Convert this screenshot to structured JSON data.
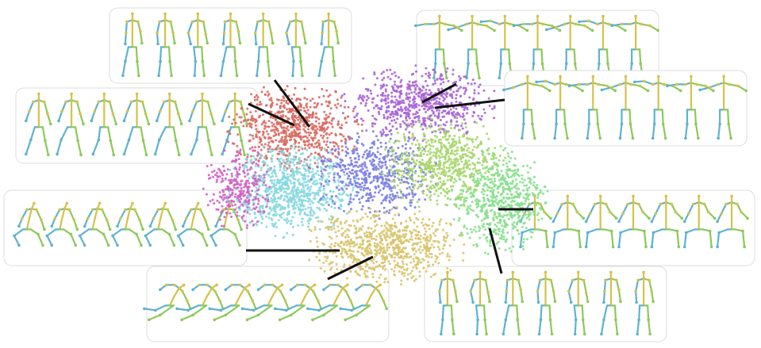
{
  "palette": {
    "red": "#d9695f",
    "purple": "#a863d6",
    "cyan": "#86d8e0",
    "blue": "#7b7fe3",
    "lime": "#a7d66b",
    "green": "#86e08c",
    "yellow": "#d8c46c",
    "pink": "#d45fc4",
    "skeleton_left": "#5fb2cf",
    "skeleton_right": "#8dc95a",
    "skeleton_spine": "#d4c24a",
    "panel_border": "#dcdcdc",
    "leader_line": "#111111"
  },
  "clusters": [
    {
      "name": "cluster-red",
      "color_key": "red",
      "points": 700
    },
    {
      "name": "cluster-purple",
      "color_key": "purple",
      "points": 650
    },
    {
      "name": "cluster-cyan",
      "color_key": "cyan",
      "points": 800
    },
    {
      "name": "cluster-blue",
      "color_key": "blue",
      "points": 550
    },
    {
      "name": "cluster-lime",
      "color_key": "lime",
      "points": 650
    },
    {
      "name": "cluster-green",
      "color_key": "green",
      "points": 600
    },
    {
      "name": "cluster-yellow",
      "color_key": "yellow",
      "points": 750
    },
    {
      "name": "cluster-pink",
      "color_key": "pink",
      "points": 280
    }
  ],
  "panels": [
    {
      "name": "pose-panel-top-left",
      "figures": 7,
      "pose": "stand"
    },
    {
      "name": "pose-panel-mid-left",
      "figures": 7,
      "pose": "walk"
    },
    {
      "name": "pose-panel-left",
      "figures": 7,
      "pose": "crouch"
    },
    {
      "name": "pose-panel-bottom-left",
      "figures": 7,
      "pose": "fall"
    },
    {
      "name": "pose-panel-top-right",
      "figures": 7,
      "pose": "arms"
    },
    {
      "name": "pose-panel-mid-right",
      "figures": 7,
      "pose": "arms"
    },
    {
      "name": "pose-panel-right",
      "figures": 7,
      "pose": "sit"
    },
    {
      "name": "pose-panel-bottom-right",
      "figures": 7,
      "pose": "stand"
    }
  ]
}
